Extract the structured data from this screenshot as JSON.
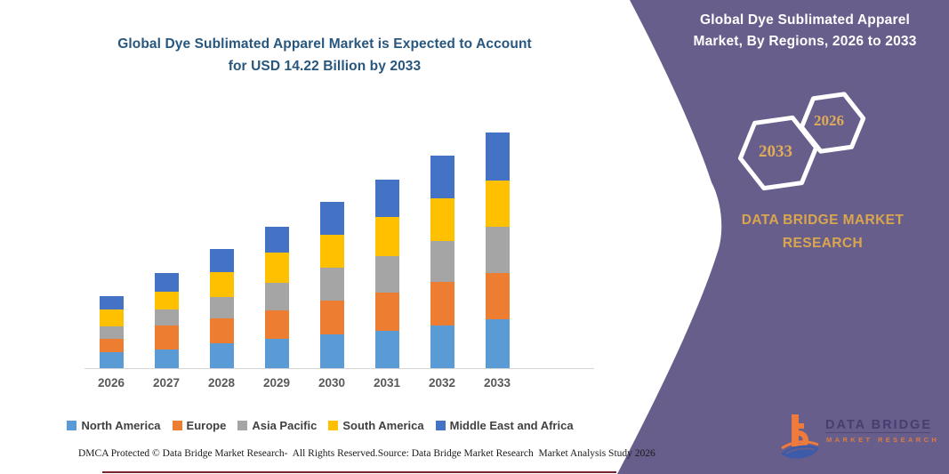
{
  "left": {
    "title_line1": "Global Dye Sublimated Apparel Market is Expected to Account",
    "title_line2": "for USD 14.22 Billion by 2033",
    "footer_left": "DMCA Protected © Data Bridge Market Research-  All Rights Reserved.",
    "footer_right": "Source: Data Bridge Market Research  Market Analysis Study 2026"
  },
  "panel": {
    "title": "Global Dye Sublimated Apparel Market, By Regions, 2026 to 2033",
    "hexagons": [
      {
        "label": "2033"
      },
      {
        "label": "2026"
      }
    ],
    "brand_line1": "DATA BRIDGE MARKET",
    "brand_line2": "RESEARCH",
    "logo_name": "DATA BRIDGE",
    "logo_sub": "MARKET RESEARCH",
    "colors": {
      "background": "#685E8C",
      "gold": "#DFAC58",
      "logo_orange": "#EE7B3C",
      "logo_blue": "#3D5BA9"
    }
  },
  "chart_data": {
    "type": "bar",
    "stacked": true,
    "title": "Global Dye Sublimated Apparel Market is Expected to Account for USD 14.22 Billion by 2033",
    "unit": "USD Billion",
    "xlabel": "",
    "ylabel": "",
    "grid": false,
    "y_axis_visible": false,
    "legend_position": "bottom",
    "categories": [
      "2026",
      "2027",
      "2028",
      "2029",
      "2030",
      "2031",
      "2032",
      "2033"
    ],
    "series": [
      {
        "name": "North America",
        "color": "#5B9BD5",
        "values": [
          0.98,
          1.11,
          1.49,
          1.79,
          2.02,
          2.27,
          2.59,
          2.95
        ]
      },
      {
        "name": "Europe",
        "color": "#ED7D31",
        "values": [
          0.8,
          1.45,
          1.5,
          1.7,
          2.04,
          2.29,
          2.6,
          2.77
        ]
      },
      {
        "name": "Asia Pacific",
        "color": "#A5A5A5",
        "values": [
          0.77,
          0.97,
          1.29,
          1.65,
          2.02,
          2.18,
          2.5,
          2.81
        ]
      },
      {
        "name": "South America",
        "color": "#FFC000",
        "values": [
          0.97,
          1.07,
          1.49,
          1.84,
          1.97,
          2.38,
          2.54,
          2.79
        ]
      },
      {
        "name": "Middle East and Africa",
        "color": "#4472C4",
        "values": [
          0.82,
          1.16,
          1.4,
          1.56,
          1.97,
          2.27,
          2.59,
          2.9
        ]
      }
    ],
    "totals_by_year": {
      "2026": 4.34,
      "2027": 5.76,
      "2028": 7.17,
      "2029": 8.54,
      "2030": 10.02,
      "2031": 11.39,
      "2032": 12.82,
      "2033": 14.22
    }
  }
}
